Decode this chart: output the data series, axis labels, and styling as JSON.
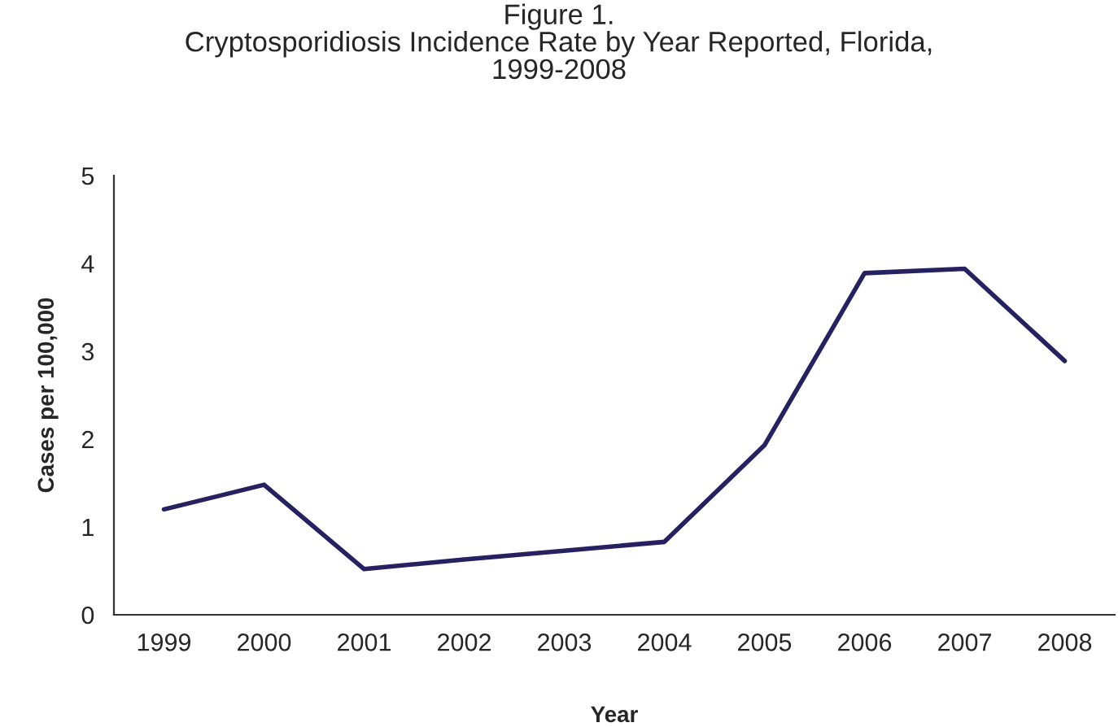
{
  "chart_data": {
    "type": "line",
    "title": "Figure 1.\nCryptosporidiosis Incidence Rate by Year Reported, Florida,\n1999-2008",
    "xlabel": "Year",
    "ylabel": "Cases per 100,000",
    "categories": [
      "1999",
      "2000",
      "2001",
      "2002",
      "2003",
      "2004",
      "2005",
      "2006",
      "2007",
      "2008"
    ],
    "series": [
      {
        "color": "#262262",
        "values": [
          1.2,
          1.48,
          0.52,
          0.63,
          0.73,
          0.83,
          1.93,
          3.89,
          3.94,
          2.89
        ]
      }
    ],
    "ylim": [
      0,
      5
    ],
    "yticks": [
      0,
      1,
      2,
      3,
      4,
      5
    ],
    "grid": false,
    "legend": false,
    "marker": "none",
    "line_style": "solid"
  }
}
